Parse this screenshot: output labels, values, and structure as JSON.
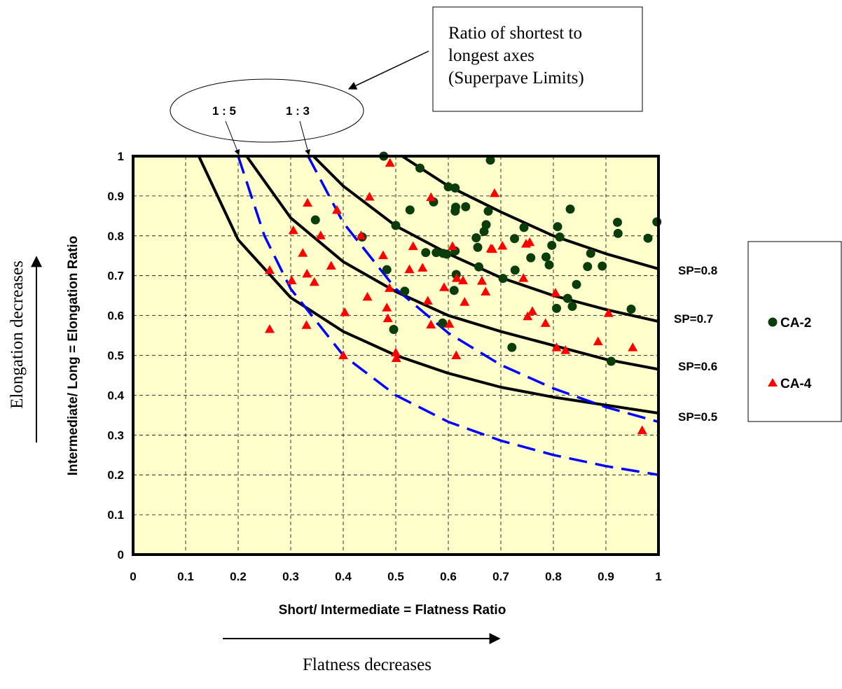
{
  "chart_data": {
    "type": "scatter",
    "xlabel": "Short/ Intermediate = Flatness Ratio",
    "ylabel": "Intermediate/ Long = Elongation Ratio",
    "xlim": [
      0,
      1
    ],
    "ylim": [
      0,
      1
    ],
    "x_ticks": [
      "0",
      "0.1",
      "0.2",
      "0.3",
      "0.4",
      "0.5",
      "0.6",
      "0.7",
      "0.8",
      "0.9",
      "1"
    ],
    "y_ticks": [
      "0",
      "0.1",
      "0.2",
      "0.3",
      "0.4",
      "0.5",
      "0.6",
      "0.7",
      "0.8",
      "0.9",
      "1"
    ],
    "grid": true,
    "plot_background": "#ffffcc",
    "legend": {
      "placement": "right",
      "entries": [
        {
          "label": "CA-2",
          "marker": "circle",
          "color": "#0a3d0a"
        },
        {
          "label": "CA-4",
          "marker": "triangle",
          "color": "#ff0000"
        }
      ]
    },
    "series": [
      {
        "name": "CA-2",
        "marker": "circle",
        "color": "#0a3d0a",
        "points": [
          [
            0.477,
            1.0
          ],
          [
            0.68,
            0.99
          ],
          [
            0.546,
            0.97
          ],
          [
            0.6,
            0.923
          ],
          [
            0.613,
            0.92
          ],
          [
            0.676,
            0.862
          ],
          [
            0.614,
            0.872
          ],
          [
            0.613,
            0.862
          ],
          [
            0.633,
            0.873
          ],
          [
            0.572,
            0.885
          ],
          [
            0.527,
            0.865
          ],
          [
            0.832,
            0.867
          ],
          [
            0.922,
            0.834
          ],
          [
            0.997,
            0.835
          ],
          [
            0.923,
            0.806
          ],
          [
            0.98,
            0.794
          ],
          [
            0.347,
            0.84
          ],
          [
            0.436,
            0.797
          ],
          [
            0.5,
            0.826
          ],
          [
            0.672,
            0.828
          ],
          [
            0.668,
            0.811
          ],
          [
            0.653,
            0.795
          ],
          [
            0.744,
            0.821
          ],
          [
            0.808,
            0.823
          ],
          [
            0.812,
            0.797
          ],
          [
            0.726,
            0.793
          ],
          [
            0.871,
            0.756
          ],
          [
            0.797,
            0.776
          ],
          [
            0.792,
            0.727
          ],
          [
            0.757,
            0.745
          ],
          [
            0.786,
            0.747
          ],
          [
            0.865,
            0.723
          ],
          [
            0.893,
            0.724
          ],
          [
            0.577,
            0.758
          ],
          [
            0.613,
            0.762
          ],
          [
            0.557,
            0.758
          ],
          [
            0.59,
            0.756
          ],
          [
            0.597,
            0.754
          ],
          [
            0.656,
            0.771
          ],
          [
            0.658,
            0.722
          ],
          [
            0.483,
            0.715
          ],
          [
            0.615,
            0.703
          ],
          [
            0.704,
            0.693
          ],
          [
            0.727,
            0.714
          ],
          [
            0.844,
            0.678
          ],
          [
            0.806,
            0.618
          ],
          [
            0.827,
            0.643
          ],
          [
            0.836,
            0.623
          ],
          [
            0.611,
            0.663
          ],
          [
            0.517,
            0.661
          ],
          [
            0.948,
            0.616
          ],
          [
            0.589,
            0.581
          ],
          [
            0.496,
            0.565
          ],
          [
            0.721,
            0.52
          ],
          [
            0.91,
            0.485
          ]
        ]
      },
      {
        "name": "CA-4",
        "marker": "triangle",
        "color": "#ff0000",
        "points": [
          [
            0.489,
            0.983
          ],
          [
            0.567,
            0.897
          ],
          [
            0.688,
            0.907
          ],
          [
            0.45,
            0.898
          ],
          [
            0.332,
            0.883
          ],
          [
            0.388,
            0.865
          ],
          [
            0.305,
            0.814
          ],
          [
            0.357,
            0.801
          ],
          [
            0.434,
            0.801
          ],
          [
            0.533,
            0.774
          ],
          [
            0.608,
            0.774
          ],
          [
            0.703,
            0.775
          ],
          [
            0.681,
            0.768
          ],
          [
            0.684,
            0.767
          ],
          [
            0.748,
            0.78
          ],
          [
            0.755,
            0.784
          ],
          [
            0.323,
            0.757
          ],
          [
            0.476,
            0.751
          ],
          [
            0.526,
            0.716
          ],
          [
            0.551,
            0.72
          ],
          [
            0.377,
            0.725
          ],
          [
            0.26,
            0.714
          ],
          [
            0.331,
            0.705
          ],
          [
            0.302,
            0.688
          ],
          [
            0.345,
            0.684
          ],
          [
            0.616,
            0.694
          ],
          [
            0.628,
            0.688
          ],
          [
            0.664,
            0.687
          ],
          [
            0.743,
            0.694
          ],
          [
            0.592,
            0.671
          ],
          [
            0.671,
            0.66
          ],
          [
            0.488,
            0.669
          ],
          [
            0.483,
            0.62
          ],
          [
            0.446,
            0.647
          ],
          [
            0.631,
            0.634
          ],
          [
            0.561,
            0.637
          ],
          [
            0.403,
            0.608
          ],
          [
            0.76,
            0.611
          ],
          [
            0.751,
            0.598
          ],
          [
            0.804,
            0.657
          ],
          [
            0.905,
            0.606
          ],
          [
            0.485,
            0.593
          ],
          [
            0.602,
            0.579
          ],
          [
            0.567,
            0.577
          ],
          [
            0.33,
            0.576
          ],
          [
            0.26,
            0.566
          ],
          [
            0.785,
            0.581
          ],
          [
            0.885,
            0.535
          ],
          [
            0.951,
            0.52
          ],
          [
            0.806,
            0.52
          ],
          [
            0.823,
            0.513
          ],
          [
            0.5,
            0.507
          ],
          [
            0.501,
            0.493
          ],
          [
            0.615,
            0.5
          ],
          [
            0.4,
            0.5
          ],
          [
            0.969,
            0.312
          ]
        ]
      }
    ],
    "curves": [
      {
        "name": "SP=0.8",
        "label": "SP=0.8",
        "style": "solid",
        "color": "#000000",
        "points": [
          [
            0.512,
            1.0
          ],
          [
            0.6,
            0.925
          ],
          [
            0.7,
            0.86
          ],
          [
            0.8,
            0.8
          ],
          [
            0.9,
            0.755
          ],
          [
            1.0,
            0.717
          ]
        ]
      },
      {
        "name": "SP=0.7",
        "label": "SP=0.7",
        "style": "solid",
        "color": "#000000",
        "points": [
          [
            0.343,
            1.0
          ],
          [
            0.4,
            0.925
          ],
          [
            0.5,
            0.825
          ],
          [
            0.6,
            0.755
          ],
          [
            0.7,
            0.695
          ],
          [
            0.8,
            0.65
          ],
          [
            0.9,
            0.615
          ],
          [
            1.0,
            0.585
          ]
        ]
      },
      {
        "name": "SP=0.6",
        "label": "SP=0.6",
        "style": "solid",
        "color": "#000000",
        "points": [
          [
            0.216,
            1.0
          ],
          [
            0.3,
            0.845
          ],
          [
            0.4,
            0.735
          ],
          [
            0.5,
            0.66
          ],
          [
            0.6,
            0.6
          ],
          [
            0.7,
            0.56
          ],
          [
            0.8,
            0.525
          ],
          [
            0.9,
            0.49
          ],
          [
            1.0,
            0.465
          ]
        ]
      },
      {
        "name": "SP=0.5",
        "label": "SP=0.5",
        "style": "solid",
        "color": "#000000",
        "points": [
          [
            0.125,
            1.0
          ],
          [
            0.2,
            0.79
          ],
          [
            0.3,
            0.645
          ],
          [
            0.4,
            0.56
          ],
          [
            0.5,
            0.5
          ],
          [
            0.6,
            0.455
          ],
          [
            0.7,
            0.42
          ],
          [
            0.8,
            0.395
          ],
          [
            0.9,
            0.375
          ],
          [
            1.0,
            0.355
          ]
        ]
      },
      {
        "name": "1 : 3",
        "label": "1 : 3",
        "style": "dashed",
        "color": "#0000ff",
        "points": [
          [
            0.333,
            1.0
          ],
          [
            0.4,
            0.833
          ],
          [
            0.5,
            0.667
          ],
          [
            0.6,
            0.556
          ],
          [
            0.7,
            0.476
          ],
          [
            0.8,
            0.417
          ],
          [
            0.9,
            0.37
          ],
          [
            1.0,
            0.333
          ]
        ]
      },
      {
        "name": "1 : 5",
        "label": "1 : 5",
        "style": "dashed",
        "color": "#0000ff",
        "points": [
          [
            0.2,
            1.0
          ],
          [
            0.25,
            0.8
          ],
          [
            0.3,
            0.667
          ],
          [
            0.4,
            0.5
          ],
          [
            0.5,
            0.4
          ],
          [
            0.6,
            0.333
          ],
          [
            0.7,
            0.286
          ],
          [
            0.8,
            0.25
          ],
          [
            0.9,
            0.222
          ],
          [
            1.0,
            0.2
          ]
        ]
      }
    ],
    "annotations": {
      "callout": "Ratio of shortest to longest axes (Superpave Limits)",
      "callout_lines": [
        "Ratio of shortest to",
        "longest axes",
        "(Superpave Limits)"
      ],
      "ellipse_labels": [
        "1 : 5",
        "1 : 3"
      ],
      "flatness_arrow": "Flatness decreases",
      "elongation_arrow": "Elongation decreases"
    }
  }
}
